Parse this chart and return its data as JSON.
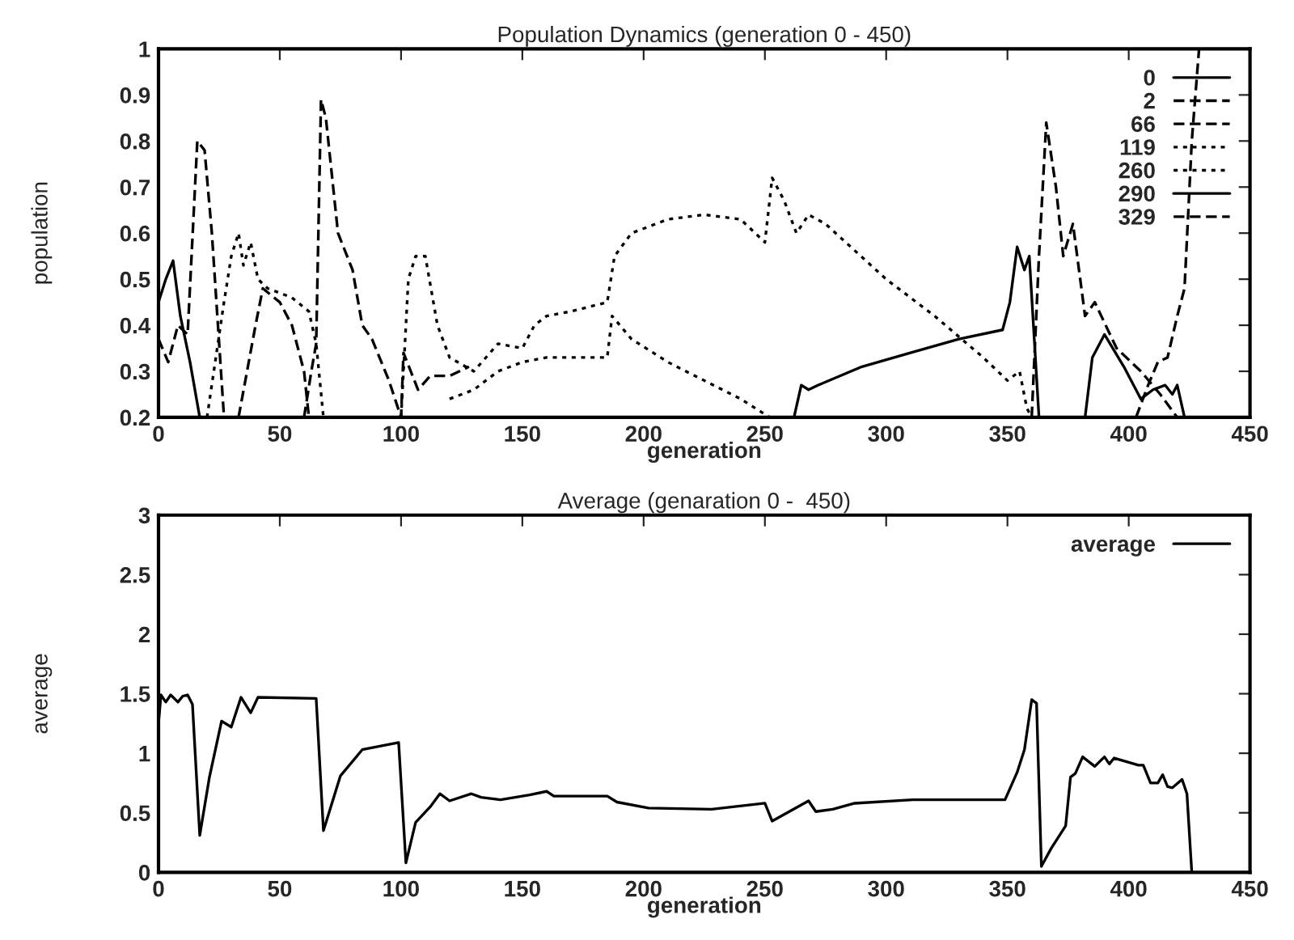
{
  "chart_data": [
    {
      "type": "line",
      "title": "Population Dynamics (generation 0 - 450)",
      "xlabel": "generation",
      "ylabel": "population",
      "xlim": [
        0,
        450
      ],
      "xticks": [
        0,
        50,
        100,
        150,
        200,
        250,
        300,
        350,
        400,
        450
      ],
      "ylim": [
        0.2,
        1
      ],
      "yticks": [
        0.2,
        0.3,
        0.4,
        0.5,
        0.6,
        0.7,
        0.8,
        0.9,
        1
      ],
      "legend": "top right",
      "grid": false,
      "series": [
        {
          "name": "0",
          "color": "#000000",
          "line_style": "solid",
          "x": [
            0,
            3,
            6,
            9,
            13,
            17,
            200,
            262,
            265,
            268,
            272,
            290,
            310,
            330,
            348,
            351,
            354,
            357,
            359,
            363
          ],
          "values": [
            0.45,
            0.5,
            0.54,
            0.42,
            0.32,
            0.2,
            null,
            0.2,
            0.27,
            0.26,
            0.27,
            0.31,
            0.34,
            0.37,
            0.39,
            0.45,
            0.57,
            0.52,
            0.55,
            0.2
          ]
        },
        {
          "name": "2",
          "color": "#000000",
          "line_style": "dashed",
          "x": [
            0,
            4,
            8,
            12,
            16,
            19,
            22,
            27,
            200,
            360,
            363,
            366,
            370,
            373,
            377,
            382,
            386,
            395,
            405,
            413,
            420
          ],
          "values": [
            0.37,
            0.32,
            0.4,
            0.38,
            0.8,
            0.78,
            0.6,
            0.2,
            null,
            0.2,
            0.55,
            0.84,
            0.7,
            0.55,
            0.62,
            0.42,
            0.45,
            0.35,
            0.3,
            0.25,
            0.2
          ]
        },
        {
          "name": "66",
          "color": "#000000",
          "line_style": "dashed",
          "x": [
            60,
            63,
            65,
            67,
            69,
            74,
            80,
            84,
            88,
            95,
            100,
            101,
            104,
            107,
            112,
            120,
            128
          ],
          "values": [
            0.2,
            0.3,
            0.36,
            0.89,
            0.85,
            0.6,
            0.52,
            0.4,
            0.37,
            0.28,
            0.2,
            0.34,
            0.3,
            0.26,
            0.29,
            0.29,
            0.31
          ]
        },
        {
          "name": "119",
          "color": "#000000",
          "line_style": "dotted",
          "x": [
            20,
            27,
            30,
            33,
            35,
            38,
            41,
            45,
            55,
            62,
            65,
            68,
            90,
            100,
            103,
            106,
            110,
            115,
            120,
            130,
            140,
            150,
            155,
            160,
            170,
            185,
            188,
            195,
            210,
            225,
            240,
            250,
            253,
            258,
            263,
            268,
            275,
            300,
            320,
            340,
            350,
            355,
            358,
            360
          ],
          "values": [
            0.2,
            0.45,
            0.55,
            0.6,
            0.53,
            0.58,
            0.5,
            0.48,
            0.46,
            0.43,
            0.36,
            0.2,
            null,
            0.2,
            0.5,
            0.55,
            0.55,
            0.4,
            0.33,
            0.3,
            0.36,
            0.35,
            0.4,
            0.42,
            0.43,
            0.45,
            0.55,
            0.6,
            0.63,
            0.64,
            0.63,
            0.58,
            0.72,
            0.67,
            0.6,
            0.64,
            0.62,
            0.5,
            0.42,
            0.33,
            0.28,
            0.3,
            0.22,
            0.2
          ]
        },
        {
          "name": "260",
          "color": "#000000",
          "line_style": "dotted",
          "x": [
            120,
            130,
            140,
            150,
            160,
            170,
            185,
            187,
            195,
            210,
            225,
            240,
            252
          ],
          "values": [
            0.24,
            0.26,
            0.3,
            0.32,
            0.33,
            0.33,
            0.33,
            0.42,
            0.37,
            0.32,
            0.28,
            0.24,
            0.2
          ]
        },
        {
          "name": "290",
          "color": "#000000",
          "line_style": "solid",
          "x": [
            382,
            385,
            390,
            398,
            405,
            410,
            415,
            418,
            420,
            423
          ],
          "values": [
            0.2,
            0.33,
            0.38,
            0.31,
            0.24,
            0.26,
            0.27,
            0.25,
            0.27,
            0.2
          ]
        },
        {
          "name": "329",
          "color": "#000000",
          "line_style": "dashed",
          "x": [
            33,
            40,
            43,
            50,
            55,
            60,
            62,
            200,
            403,
            408,
            412,
            416,
            420,
            423,
            426,
            429
          ],
          "values": [
            0.2,
            0.4,
            0.48,
            0.45,
            0.4,
            0.3,
            0.2,
            null,
            0.2,
            0.27,
            0.32,
            0.33,
            0.42,
            0.48,
            0.8,
            1.0
          ]
        }
      ]
    },
    {
      "type": "line",
      "title": "Average (genaration 0 -  450)",
      "xlabel": "generation",
      "ylabel": "average",
      "xlim": [
        0,
        450
      ],
      "xticks": [
        0,
        50,
        100,
        150,
        200,
        250,
        300,
        350,
        400,
        450
      ],
      "ylim": [
        0,
        3
      ],
      "yticks": [
        0,
        0.5,
        1,
        1.5,
        2,
        2.5,
        3
      ],
      "legend": "top right",
      "grid": false,
      "series": [
        {
          "name": "average",
          "color": "#000000",
          "line_style": "solid",
          "x": [
            0,
            1,
            3,
            5,
            8,
            10,
            12,
            14,
            17,
            21,
            26,
            30,
            34,
            38,
            41,
            65,
            68,
            75,
            84,
            99,
            102,
            106,
            112,
            116,
            120,
            129,
            133,
            141,
            153,
            160,
            163,
            185,
            189,
            202,
            228,
            250,
            253,
            268,
            271,
            278,
            287,
            311,
            349,
            354,
            357,
            360,
            362,
            364,
            368,
            374,
            376,
            378,
            381,
            386,
            390,
            392,
            394,
            404,
            406,
            409,
            412,
            414,
            416,
            418,
            422,
            424,
            426
          ],
          "values": [
            1.25,
            1.49,
            1.43,
            1.49,
            1.43,
            1.48,
            1.49,
            1.41,
            0.31,
            0.8,
            1.27,
            1.22,
            1.47,
            1.34,
            1.47,
            1.46,
            0.35,
            0.81,
            1.03,
            1.09,
            0.08,
            0.42,
            0.55,
            0.66,
            0.6,
            0.66,
            0.63,
            0.61,
            0.65,
            0.68,
            0.64,
            0.64,
            0.59,
            0.54,
            0.53,
            0.58,
            0.43,
            0.6,
            0.51,
            0.53,
            0.58,
            0.61,
            0.61,
            0.84,
            1.03,
            1.45,
            1.42,
            0.05,
            0.2,
            0.39,
            0.8,
            0.83,
            0.97,
            0.89,
            0.97,
            0.91,
            0.96,
            0.9,
            0.9,
            0.75,
            0.75,
            0.82,
            0.72,
            0.71,
            0.78,
            0.66,
            0
          ]
        }
      ]
    }
  ]
}
